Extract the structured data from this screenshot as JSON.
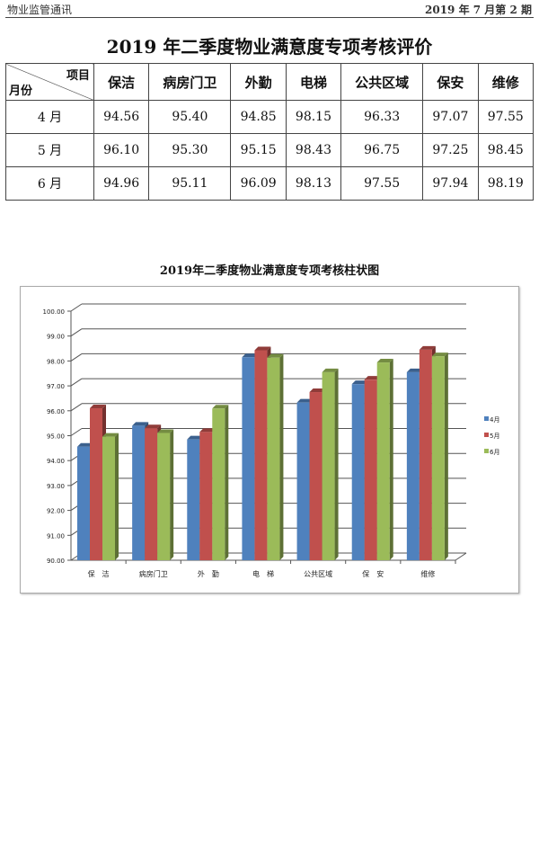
{
  "header": {
    "left": "物业监管通讯",
    "right": "2019 年 7 月第 2 期"
  },
  "title": "2019 年二季度物业满意度专项考核评价",
  "table": {
    "corner_top": "项目",
    "corner_bottom": "月份",
    "columns": [
      "保洁",
      "病房门卫",
      "外勤",
      "电梯",
      "公共区域",
      "保安",
      "维修"
    ],
    "rows": [
      {
        "label": "4 月",
        "values": [
          "94.56",
          "95.40",
          "94.85",
          "98.15",
          "96.33",
          "97.07",
          "97.55"
        ]
      },
      {
        "label": "5 月",
        "values": [
          "96.10",
          "95.30",
          "95.15",
          "98.43",
          "96.75",
          "97.25",
          "98.45"
        ]
      },
      {
        "label": "6 月",
        "values": [
          "94.96",
          "95.11",
          "96.09",
          "98.13",
          "97.55",
          "97.94",
          "98.19"
        ]
      }
    ]
  },
  "chart_data": {
    "type": "bar",
    "title": "2019年二季度物业满意度专项考核柱状图",
    "categories": [
      "保　洁",
      "病房门卫",
      "外　勤",
      "电　梯",
      "公共区域",
      "保　安",
      "维修"
    ],
    "ylim": [
      90,
      100
    ],
    "yticks": [
      "90.00",
      "91.00",
      "92.00",
      "93.00",
      "94.00",
      "95.00",
      "96.00",
      "97.00",
      "98.00",
      "99.00",
      "100.00"
    ],
    "grid": true,
    "style": "3d-clustered",
    "legend": "right",
    "series": [
      {
        "name": "4月",
        "color": "#4f81bd",
        "values": [
          94.56,
          95.4,
          94.85,
          98.15,
          96.33,
          97.07,
          97.55
        ]
      },
      {
        "name": "5月",
        "color": "#c0504d",
        "values": [
          96.1,
          95.3,
          95.15,
          98.43,
          96.75,
          97.25,
          98.45
        ]
      },
      {
        "name": "6月",
        "color": "#9bbb59",
        "values": [
          94.96,
          95.11,
          96.09,
          98.13,
          97.55,
          97.94,
          98.19
        ]
      }
    ]
  }
}
